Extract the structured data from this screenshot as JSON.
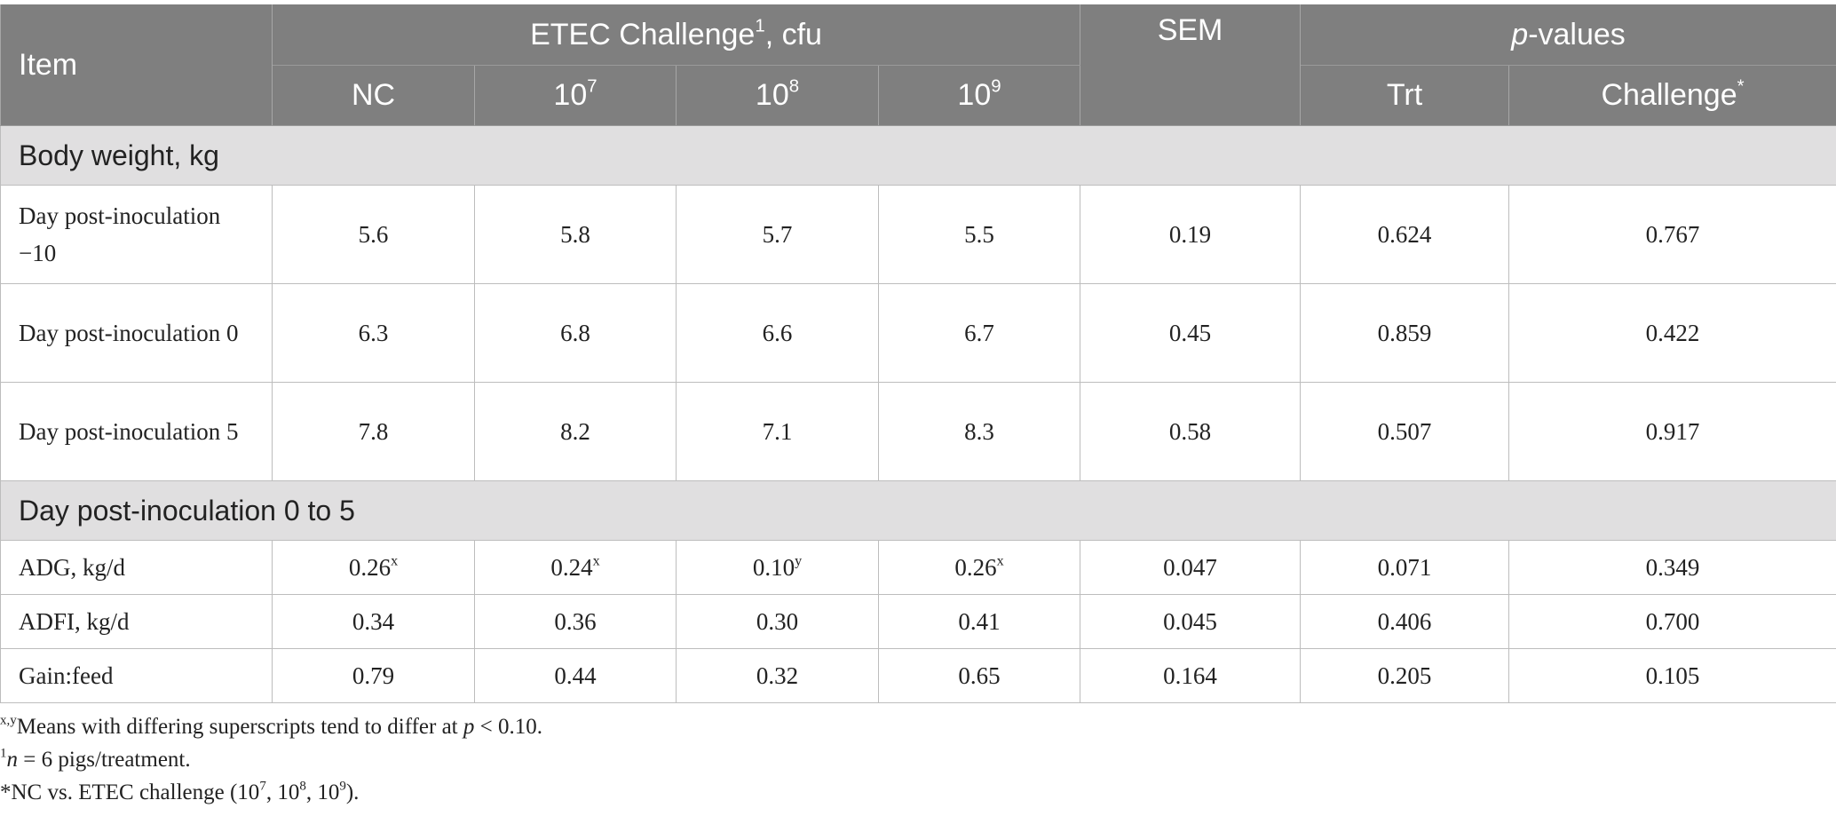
{
  "table": {
    "header": {
      "item": "Item",
      "group": [
        {
          "text": "ETEC Challenge"
        },
        {
          "sup": "1"
        },
        {
          "text": ", cfu"
        }
      ],
      "sem": "SEM",
      "pvalues": [
        {
          "i": "p"
        },
        {
          "text": "-values"
        }
      ],
      "columns": [
        "NC",
        [
          {
            "text": "10"
          },
          {
            "sup": "7"
          }
        ],
        [
          {
            "text": "10"
          },
          {
            "sup": "8"
          }
        ],
        [
          {
            "text": "10"
          },
          {
            "sup": "9"
          }
        ]
      ],
      "pcolumns": [
        "Trt",
        [
          {
            "text": "Challenge"
          },
          {
            "sup": "*"
          }
        ]
      ]
    },
    "sections": [
      {
        "title": "Body weight, kg",
        "rows": [
          [
            "Day post-inoculation −10",
            "5.6",
            "5.8",
            "5.7",
            "5.5",
            "0.19",
            "0.624",
            "0.767"
          ],
          [
            "Day post-inoculation 0",
            "6.3",
            "6.8",
            "6.6",
            "6.7",
            "0.45",
            "0.859",
            "0.422"
          ],
          [
            "Day post-inoculation 5",
            "7.8",
            "8.2",
            "7.1",
            "8.3",
            "0.58",
            "0.507",
            "0.917"
          ]
        ]
      },
      {
        "title": "Day post-inoculation 0 to 5",
        "rows": [
          [
            "ADG, kg/d",
            [
              {
                "text": "0.26"
              },
              {
                "sup": "x"
              }
            ],
            [
              {
                "text": "0.24"
              },
              {
                "sup": "x"
              }
            ],
            [
              {
                "text": "0.10"
              },
              {
                "sup": "y"
              }
            ],
            [
              {
                "text": "0.26"
              },
              {
                "sup": "x"
              }
            ],
            "0.047",
            "0.071",
            "0.349"
          ],
          [
            "ADFI, kg/d",
            "0.34",
            "0.36",
            "0.30",
            "0.41",
            "0.045",
            "0.406",
            "0.700"
          ],
          [
            "Gain:feed",
            "0.79",
            "0.44",
            "0.32",
            "0.65",
            "0.164",
            "0.205",
            "0.105"
          ]
        ]
      }
    ]
  },
  "footnotes": [
    [
      {
        "sup": "x,y"
      },
      {
        "text": "Means with differing superscripts tend to differ at "
      },
      {
        "i": "p"
      },
      {
        "text": " < 0.10."
      }
    ],
    [
      {
        "sup": "1"
      },
      {
        "i": "n"
      },
      {
        "text": " = 6 pigs/treatment."
      }
    ],
    [
      {
        "text": "*NC vs. ETEC challenge (10"
      },
      {
        "sup": "7"
      },
      {
        "text": ", 10"
      },
      {
        "sup": "8"
      },
      {
        "text": ", 10"
      },
      {
        "sup": "9"
      },
      {
        "text": ")."
      }
    ]
  ]
}
